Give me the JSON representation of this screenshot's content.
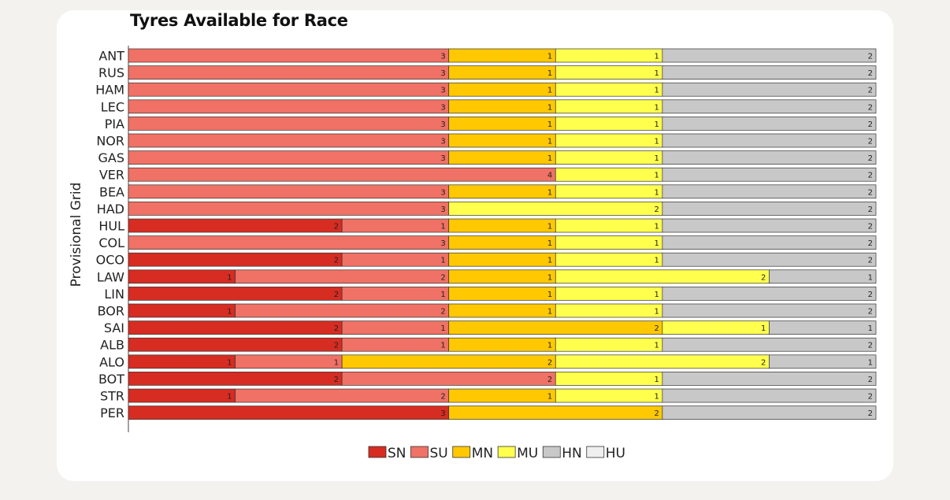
{
  "chart_data": {
    "type": "bar",
    "orientation": "horizontal",
    "stacked": true,
    "title": "Tyres Available for Race",
    "xlabel": "",
    "ylabel": "Provisional Grid",
    "xlim": [
      0,
      7
    ],
    "categories": [
      "ANT",
      "RUS",
      "HAM",
      "LEC",
      "PIA",
      "NOR",
      "GAS",
      "VER",
      "BEA",
      "HAD",
      "HUL",
      "COL",
      "OCO",
      "LAW",
      "LIN",
      "BOR",
      "SAI",
      "ALB",
      "ALO",
      "BOT",
      "STR",
      "PER"
    ],
    "series": [
      {
        "name": "SN",
        "color": "#d62c22",
        "values": [
          0,
          0,
          0,
          0,
          0,
          0,
          0,
          0,
          0,
          0,
          2,
          0,
          2,
          1,
          2,
          1,
          2,
          2,
          1,
          2,
          1,
          3
        ]
      },
      {
        "name": "SU",
        "color": "#f07165",
        "values": [
          3,
          3,
          3,
          3,
          3,
          3,
          3,
          4,
          3,
          3,
          1,
          3,
          1,
          2,
          1,
          2,
          1,
          1,
          1,
          2,
          2,
          0
        ]
      },
      {
        "name": "MN",
        "color": "#ffc800",
        "values": [
          1,
          1,
          1,
          1,
          1,
          1,
          1,
          0,
          1,
          0,
          1,
          1,
          1,
          1,
          1,
          1,
          2,
          1,
          2,
          0,
          1,
          2
        ]
      },
      {
        "name": "MU",
        "color": "#ffff4d",
        "values": [
          1,
          1,
          1,
          1,
          1,
          1,
          1,
          1,
          1,
          2,
          1,
          1,
          1,
          2,
          1,
          1,
          1,
          1,
          2,
          1,
          1,
          0
        ]
      },
      {
        "name": "HN",
        "color": "#c8c8c8",
        "values": [
          2,
          2,
          2,
          2,
          2,
          2,
          2,
          2,
          2,
          2,
          2,
          2,
          2,
          1,
          2,
          2,
          1,
          2,
          1,
          2,
          2,
          2
        ]
      },
      {
        "name": "HU",
        "color": "#efefef",
        "values": [
          0,
          0,
          0,
          0,
          0,
          0,
          0,
          0,
          0,
          0,
          0,
          0,
          0,
          0,
          0,
          0,
          0,
          0,
          0,
          0,
          0,
          0
        ]
      }
    ],
    "legend_position": "bottom-center",
    "grid": false
  }
}
